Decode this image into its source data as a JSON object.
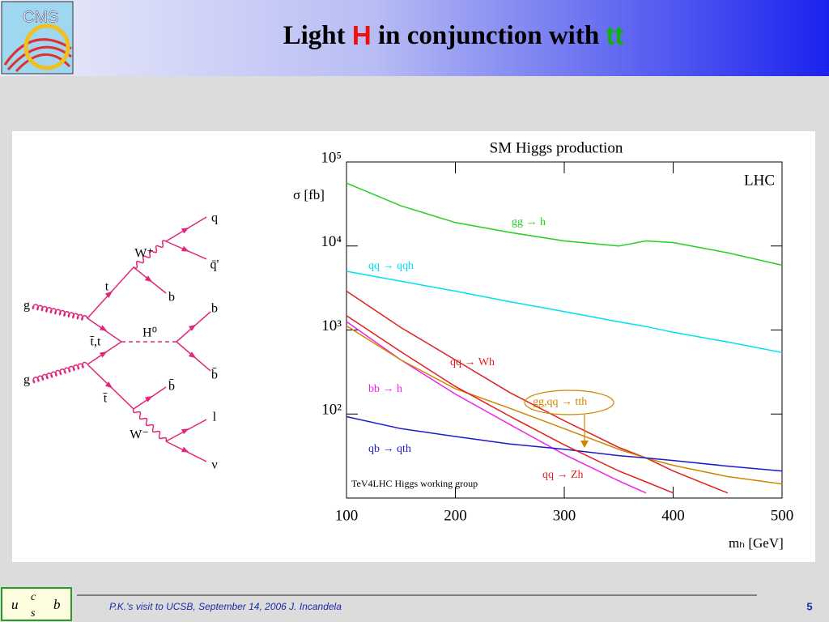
{
  "header": {
    "title": [
      "Light ",
      "H",
      " in conjunction with ",
      "tt"
    ],
    "logo": "CMS"
  },
  "diagram": {
    "labels": [
      "g",
      "g",
      "t",
      "t̄,t",
      "t̄",
      "W⁺",
      "H⁰",
      "W⁻",
      "q",
      "q̄'",
      "b",
      "b",
      "b̄",
      "b̄",
      "l",
      "ν"
    ]
  },
  "chart_data": {
    "type": "line",
    "title": "SM Higgs production",
    "xlabel": "mₕ [GeV]",
    "ylabel": "σ [fb]",
    "annotations": [
      "LHC",
      "TeV4LHC Higgs working group"
    ],
    "log_y": true,
    "x": [
      100,
      150,
      200,
      250,
      300,
      350,
      375,
      400,
      450,
      500
    ],
    "series": [
      {
        "name": "gg → h",
        "color": "#22d022",
        "values": [
          56000,
          30000,
          19000,
          14500,
          11500,
          10000,
          11500,
          11000,
          8300,
          5900
        ]
      },
      {
        "name": "qq → qqh",
        "color": "#00e0f0",
        "values": [
          5000,
          3800,
          2900,
          2170,
          1660,
          1250,
          1100,
          940,
          720,
          540
        ]
      },
      {
        "name": "qq → Wh",
        "color": "#e02020",
        "values": [
          2900,
          1070,
          440,
          180,
          83,
          40,
          30,
          21,
          11.5,
          null
        ]
      },
      {
        "name": "bb → h",
        "color": "#ee22ee",
        "values": [
          1260,
          440,
          173,
          75,
          33,
          16,
          11.5,
          null,
          null,
          null
        ]
      },
      {
        "name": "gg,qq → tth",
        "color": "#cc8800",
        "values": [
          1120,
          440,
          200,
          117,
          67,
          38,
          30,
          24.5,
          18,
          14.7
        ]
      },
      {
        "name": "qb → qth",
        "color": "#1a1acc",
        "values": [
          93,
          67,
          54,
          44,
          38,
          32,
          30,
          28,
          24,
          21
        ]
      },
      {
        "name": "qq → Zh",
        "color": "#e02020",
        "values": [
          1480,
          550,
          213,
          94,
          43,
          21,
          15.6,
          11.5,
          null,
          null
        ]
      }
    ],
    "xlim": [
      100,
      500
    ],
    "xticks": [
      100,
      200,
      300,
      400,
      500
    ],
    "ylim": [
      10,
      100000
    ],
    "yticks": [
      {
        "value": 100,
        "label": "10²"
      },
      {
        "value": 1000,
        "label": "10³"
      },
      {
        "value": 10000,
        "label": "10⁴"
      },
      {
        "value": 100000,
        "label": "10⁵"
      }
    ]
  },
  "footer": {
    "text": "P.K.'s visit to UCSB, September 14, 2006   J. Incandela",
    "page": "5",
    "logo": [
      "u",
      "c",
      "s",
      "b"
    ]
  }
}
